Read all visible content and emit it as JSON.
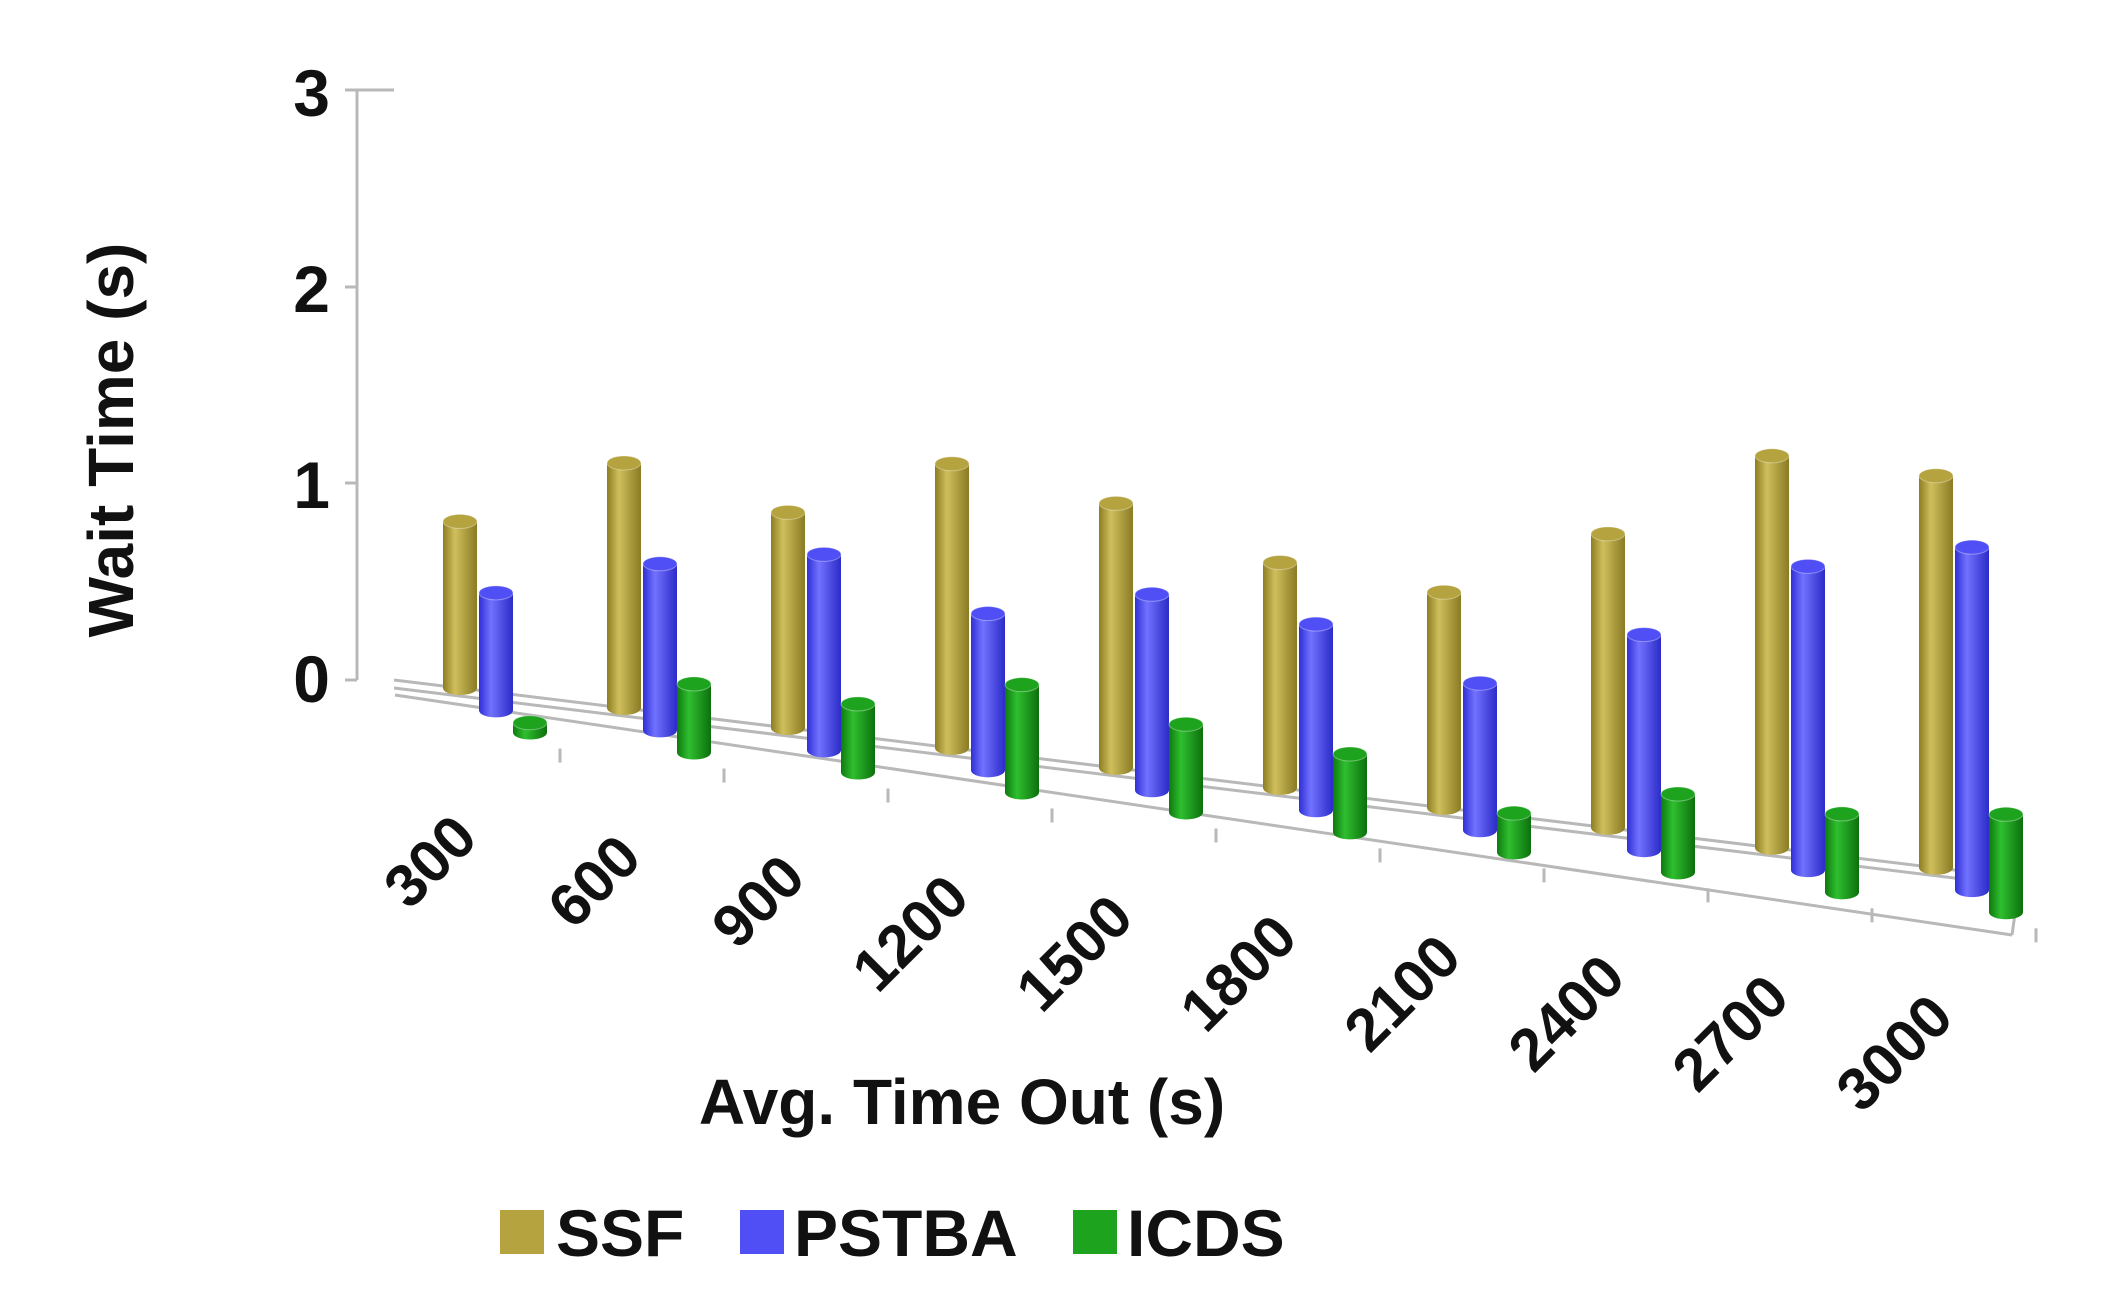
{
  "chart_data": {
    "type": "bar",
    "style": "3d-cylinder",
    "title": "",
    "xlabel": "Avg. Time Out (s)",
    "ylabel": "Wait Time (s)",
    "ylim": [
      0,
      3
    ],
    "yticks": [
      "0",
      "1",
      "2",
      "3"
    ],
    "categories": [
      "300",
      "600",
      "900",
      "1200",
      "1500",
      "1800",
      "2100",
      "2400",
      "2700",
      "3000"
    ],
    "series": [
      {
        "name": "SSF",
        "color": "#b5a33f",
        "values": [
          0.85,
          1.25,
          1.1,
          1.45,
          1.35,
          1.15,
          1.1,
          1.5,
          2.0,
          2.0
        ]
      },
      {
        "name": "PSTBA",
        "color": "#4f4ff5",
        "values": [
          0.6,
          0.85,
          1.0,
          0.8,
          1.0,
          0.95,
          0.75,
          1.1,
          1.55,
          1.75
        ]
      },
      {
        "name": "ICDS",
        "color": "#1ea31e",
        "values": [
          0.05,
          0.35,
          0.35,
          0.55,
          0.45,
          0.4,
          0.2,
          0.4,
          0.4,
          0.5
        ]
      }
    ],
    "legend_position": "bottom"
  }
}
